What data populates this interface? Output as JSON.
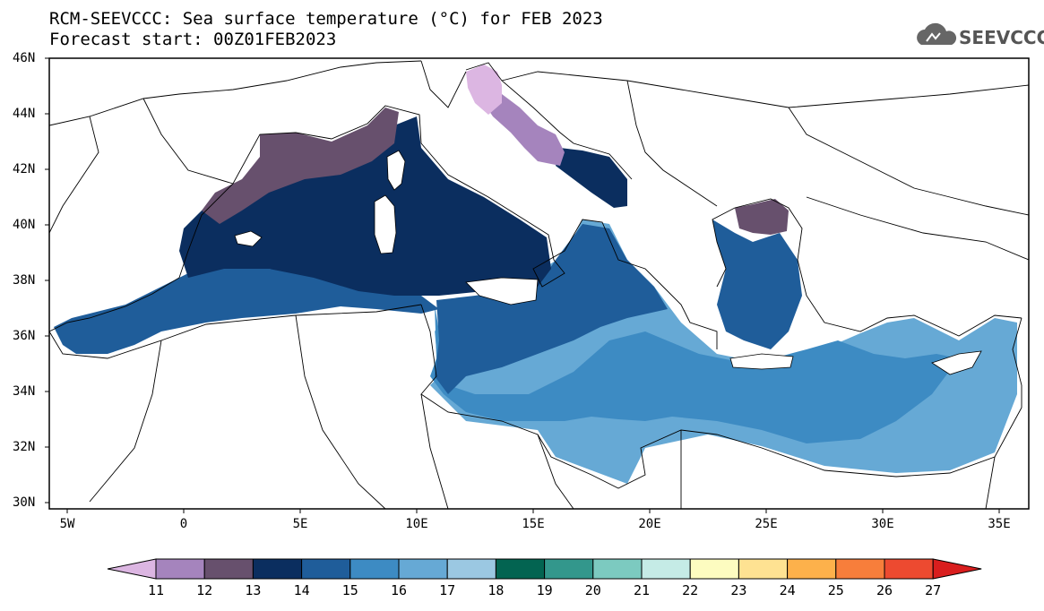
{
  "header": {
    "title": "RCM-SEEVCCC: Sea surface temperature (°C) for FEB 2023",
    "subtitle": "Forecast start: 00Z01FEB2023"
  },
  "logo": {
    "text": "SEEVCCC",
    "icon": "cloud-icon"
  },
  "map": {
    "lat_labels": [
      "46N",
      "44N",
      "42N",
      "40N",
      "38N",
      "36N",
      "34N",
      "32N",
      "30N"
    ],
    "lon_labels": [
      "5W",
      "0",
      "5E",
      "10E",
      "15E",
      "20E",
      "25E",
      "30E",
      "35E"
    ],
    "region": "Mediterranean Sea",
    "field_zones": [
      {
        "name": "adriatic-north",
        "value_range": "11-12"
      },
      {
        "name": "ligurian-gulf-of-lion",
        "value_range": "13"
      },
      {
        "name": "tyrrhenian-balearic",
        "value_range": "13-14"
      },
      {
        "name": "alboran-algerian",
        "value_range": "14-15"
      },
      {
        "name": "ionian-central",
        "value_range": "15-16"
      },
      {
        "name": "levantine-libyan",
        "value_range": "16-17"
      },
      {
        "name": "north-aegean",
        "value_range": "13"
      }
    ]
  },
  "colorbar": {
    "labels": [
      "11",
      "12",
      "13",
      "14",
      "15",
      "16",
      "17",
      "18",
      "19",
      "20",
      "21",
      "22",
      "23",
      "24",
      "25",
      "26",
      "27"
    ],
    "colors": [
      "#dcb6e2",
      "#a584bd",
      "#67506d",
      "#0b2e5f",
      "#1f5d9a",
      "#3d8bc3",
      "#66a9d5",
      "#9bc8e2",
      "#036451",
      "#33978c",
      "#7ccac0",
      "#c5ebe6",
      "#fdfcc0",
      "#fee292",
      "#fdb14b",
      "#f77e3b",
      "#ed4a30",
      "#d91e1e"
    ]
  }
}
